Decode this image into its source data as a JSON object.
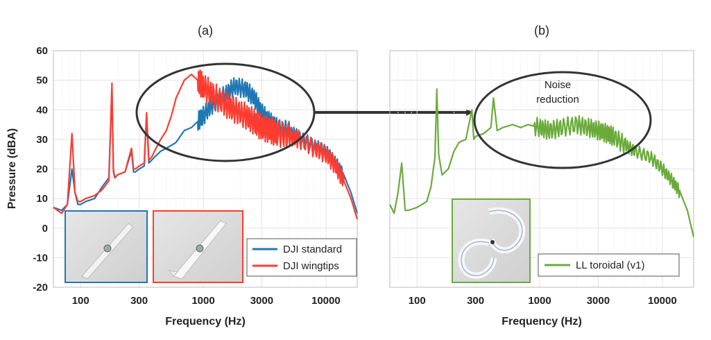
{
  "chart_data": [
    {
      "type": "line",
      "panel_label": "(a)",
      "xlabel": "Frequency (Hz)",
      "ylabel": "Pressure (dBA)",
      "x_scale": "log",
      "xlim": [
        60,
        18000
      ],
      "ylim": [
        -20,
        60
      ],
      "xticks": [
        100,
        300,
        1000,
        3000,
        10000
      ],
      "xtick_labels": [
        "100",
        "300",
        "1000",
        "3000",
        "10000"
      ],
      "yticks": [
        -20,
        -10,
        0,
        10,
        20,
        30,
        40,
        50,
        60
      ],
      "ytick_labels": [
        "-20",
        "-10",
        "0",
        "10",
        "20",
        "30",
        "40",
        "50",
        "60"
      ],
      "grid": true,
      "legend_position": "bottom-right",
      "series": [
        {
          "name": "DJI standard",
          "color": "#1f77b4",
          "x": [
            60,
            70,
            78,
            85,
            90,
            95,
            100,
            110,
            130,
            150,
            170,
            180,
            185,
            190,
            200,
            230,
            260,
            270,
            280,
            300,
            330,
            345,
            360,
            380,
            400,
            450,
            500,
            550,
            600,
            700,
            800,
            900,
            1000,
            1200,
            1500,
            1800,
            2200,
            2600,
            3000,
            3500,
            4000,
            5000,
            6000,
            8000,
            10000,
            12000,
            14000,
            16000,
            18000
          ],
          "y": [
            7,
            6,
            8,
            20,
            12,
            8,
            8,
            9,
            10,
            14,
            17,
            47,
            20,
            17,
            18,
            19,
            26,
            19,
            19,
            20,
            21,
            38,
            22,
            23,
            24,
            26,
            27,
            28,
            29,
            33,
            34,
            36,
            38,
            42,
            45,
            48,
            47,
            44,
            39,
            36,
            34,
            33,
            31,
            28,
            26,
            22,
            18,
            12,
            5
          ]
        },
        {
          "name": "DJI wingtips",
          "color": "#ff3b2f",
          "x": [
            60,
            70,
            78,
            85,
            90,
            95,
            100,
            110,
            130,
            150,
            170,
            180,
            185,
            190,
            200,
            230,
            260,
            270,
            280,
            300,
            330,
            345,
            360,
            380,
            400,
            450,
            500,
            550,
            600,
            700,
            800,
            900,
            1000,
            1200,
            1500,
            1800,
            2200,
            2600,
            3000,
            3500,
            4000,
            5000,
            6000,
            8000,
            10000,
            12000,
            14000,
            16000,
            18000
          ],
          "y": [
            7,
            5,
            8,
            32,
            12,
            9,
            9,
            10,
            11,
            13,
            16,
            49,
            19,
            17,
            18,
            19,
            27,
            20,
            20,
            21,
            22,
            39,
            23,
            24,
            26,
            30,
            33,
            38,
            44,
            50,
            52,
            50,
            48,
            45,
            42,
            40,
            38,
            36,
            34,
            33,
            32,
            31,
            30,
            27,
            25,
            21,
            16,
            10,
            3
          ]
        }
      ],
      "annotations": []
    },
    {
      "type": "line",
      "panel_label": "(b)",
      "xlabel": "Frequency (Hz)",
      "ylabel": "",
      "x_scale": "log",
      "xlim": [
        60,
        18000
      ],
      "ylim": [
        -20,
        60
      ],
      "xticks": [
        100,
        300,
        1000,
        3000,
        10000
      ],
      "xtick_labels": [
        "100",
        "300",
        "1000",
        "3000",
        "10000"
      ],
      "grid": true,
      "legend_position": "bottom-right",
      "series": [
        {
          "name": "LL toroidal (v1)",
          "color": "#6aaa3a",
          "x": [
            60,
            65,
            70,
            75,
            80,
            85,
            100,
            120,
            130,
            140,
            145,
            150,
            160,
            180,
            200,
            220,
            250,
            280,
            290,
            300,
            350,
            400,
            420,
            450,
            500,
            600,
            700,
            800,
            1000,
            1200,
            1500,
            2000,
            2500,
            3000,
            3500,
            4000,
            5000,
            6000,
            8000,
            10000,
            12000,
            14000,
            16000,
            18000
          ],
          "y": [
            8,
            5,
            12,
            22,
            6,
            6,
            7,
            9,
            14,
            24,
            47,
            25,
            18,
            20,
            26,
            29,
            30,
            40,
            30,
            31,
            32,
            34,
            44,
            33,
            34,
            35,
            34,
            35,
            34,
            33,
            34,
            35,
            34,
            33,
            32,
            31,
            28,
            26,
            24,
            20,
            16,
            12,
            6,
            -3
          ]
        }
      ],
      "annotations": [
        {
          "text_lines": [
            "Noise",
            "reduction"
          ]
        }
      ]
    }
  ]
}
